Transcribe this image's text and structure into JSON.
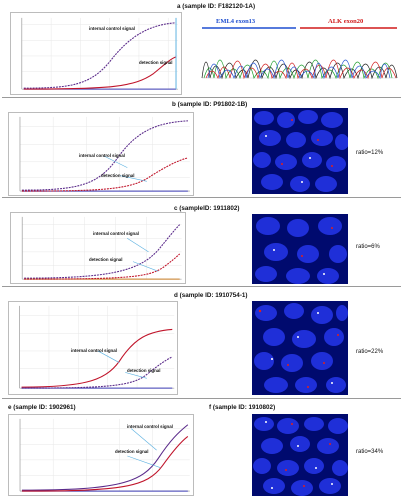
{
  "panels": {
    "a": {
      "letter": "a",
      "sample": "(sample ID: F182120-1A)",
      "internal": "internal control signal",
      "detection": "detection signal",
      "gene_left": "EML4 exon13",
      "gene_right": "ALK exon20"
    },
    "b": {
      "letter": "b",
      "sample": "(sample ID: P91802-1B)",
      "internal": "internal control signal",
      "detection": "detection signal",
      "ratio": "ratio=12%"
    },
    "c": {
      "letter": "c",
      "sample": "(sampleID: 1911802)",
      "internal": "internal control signal",
      "detection": "detection signal",
      "ratio": "ratio=6%"
    },
    "d": {
      "letter": "d",
      "sample": "(sample ID: 1910754-1)",
      "internal": "internal control signal",
      "detection": "detection signal",
      "ratio": "ratio=22%"
    },
    "e": {
      "letter": "e",
      "sample": "(sample ID: 1902961)",
      "internal": "internal control signal",
      "detection": "detection signal"
    },
    "f": {
      "letter": "f",
      "sample": "(sample ID: 1910802)",
      "ratio": "ratio=34%"
    }
  },
  "colors": {
    "internal": "#5a2a8a",
    "detection": "#c0142a",
    "baseline": "#3c3cb4",
    "fluor_bg": "#000a6e",
    "cell": "#1f2fd8",
    "gene_left": "#1f4fd0",
    "gene_right": "#d11a1a"
  }
}
